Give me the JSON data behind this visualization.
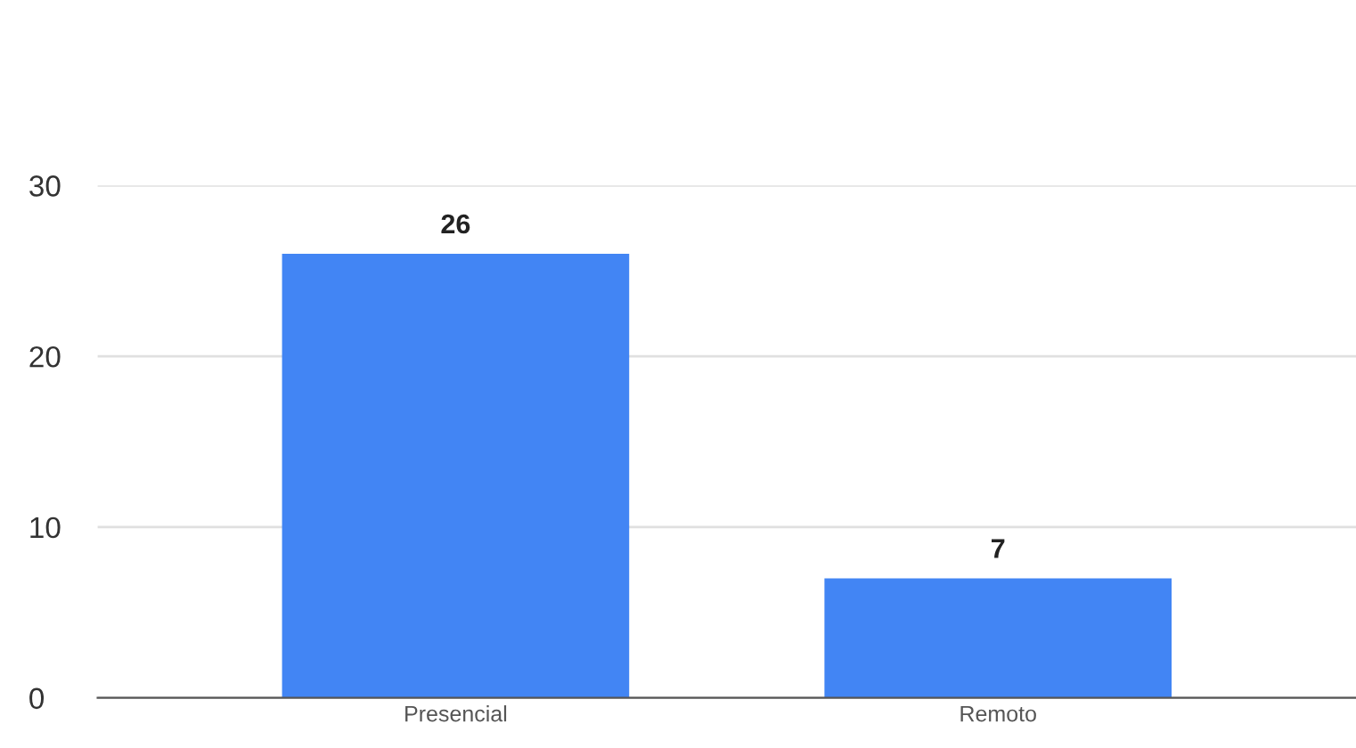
{
  "chart_data": {
    "type": "bar",
    "categories": [
      "Presencial",
      "Remoto"
    ],
    "values": [
      26,
      7
    ],
    "color": "#4285f4",
    "ylim": [
      0,
      30
    ],
    "yticks": [
      0,
      10,
      20,
      30
    ],
    "grid": "y",
    "data_labels": true,
    "legend": false
  }
}
